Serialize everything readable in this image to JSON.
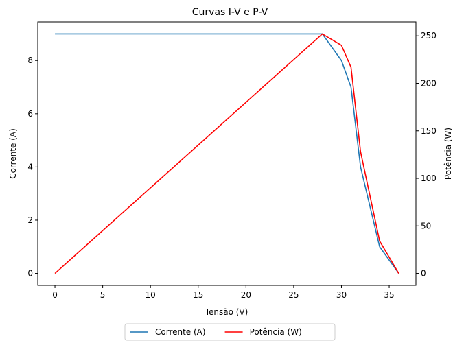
{
  "chart_data": {
    "type": "line",
    "title": "Curvas I-V e P-V",
    "xlabel": "Tensão (V)",
    "ylabel": "Corrente (A)",
    "y2label": "Potência (W)",
    "x": [
      0,
      28,
      30,
      31,
      32,
      34,
      36
    ],
    "series": [
      {
        "name": "Corrente (A)",
        "color": "#1f77b4",
        "values": [
          9,
          9,
          8,
          7,
          4,
          1,
          0
        ]
      },
      {
        "name": "Potência (W)",
        "color": "#ff0000",
        "axis": "y2",
        "values": [
          0,
          252,
          240,
          217,
          128,
          34,
          0
        ]
      }
    ],
    "xlim": [
      -1.8,
      37.8
    ],
    "xticks": [
      0,
      5,
      10,
      15,
      20,
      25,
      30,
      35
    ],
    "ylim": [
      -0.45,
      9.45
    ],
    "yticks": [
      0,
      2,
      4,
      6,
      8
    ],
    "y2lim": [
      -12.6,
      264.6
    ],
    "y2ticks": [
      0,
      50,
      100,
      150,
      200,
      250
    ],
    "legend": "bottom"
  }
}
